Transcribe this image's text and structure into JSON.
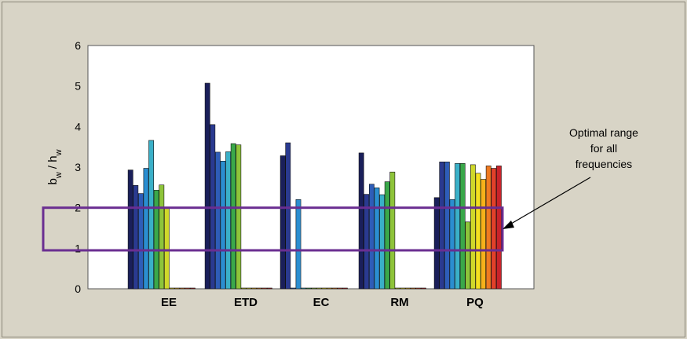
{
  "chart_data": {
    "type": "bar",
    "categories": [
      "EE",
      "ETD",
      "EC",
      "RM",
      "PQ"
    ],
    "ylabel": {
      "main": "b",
      "sub1": "w",
      "mid": " / h",
      "sub2": "w"
    },
    "ylim": [
      0,
      6
    ],
    "yticks": [
      "0",
      "1",
      "2",
      "3",
      "4",
      "5",
      "6"
    ],
    "grid": false,
    "band": {
      "y_range": [
        0.95,
        2.0
      ],
      "color": "#6a2e91"
    },
    "annotation": {
      "lines": [
        "Optimal range",
        "for all",
        "frequencies"
      ]
    },
    "series_colors": [
      "#1a1f5a",
      "#2a3a90",
      "#2e5db8",
      "#2b8ed0",
      "#3ab0c8",
      "#3aa84a",
      "#8ec43a",
      "#cfd82a",
      "#f4e020",
      "#f6b11a",
      "#ef7a20",
      "#e2402a",
      "#c9232a"
    ],
    "groups": [
      {
        "category": "EE",
        "values": [
          2.93,
          2.55,
          2.35,
          2.97,
          3.66,
          2.43,
          2.56,
          1.98,
          0.02,
          0.02,
          0.02,
          0.02,
          0.02
        ]
      },
      {
        "category": "ETD",
        "values": [
          5.07,
          4.05,
          3.37,
          3.15,
          3.38,
          3.58,
          3.55,
          0.02,
          0.02,
          0.02,
          0.02,
          0.02,
          0.02
        ]
      },
      {
        "category": "EC",
        "values": [
          3.28,
          3.6,
          0.02,
          2.2,
          0.02,
          0.02,
          0.02,
          0.02,
          0.02,
          0.02,
          0.02,
          0.02,
          0.02
        ]
      },
      {
        "category": "RM",
        "values": [
          3.35,
          2.33,
          2.58,
          2.49,
          2.32,
          2.64,
          2.88,
          0.02,
          0.02,
          0.02,
          0.02,
          0.02,
          0.02
        ]
      },
      {
        "category": "PQ",
        "values": [
          2.25,
          3.13,
          3.13,
          2.2,
          3.09,
          3.09,
          1.65,
          3.06,
          2.85,
          2.7,
          3.03,
          2.97,
          3.03
        ]
      }
    ]
  }
}
